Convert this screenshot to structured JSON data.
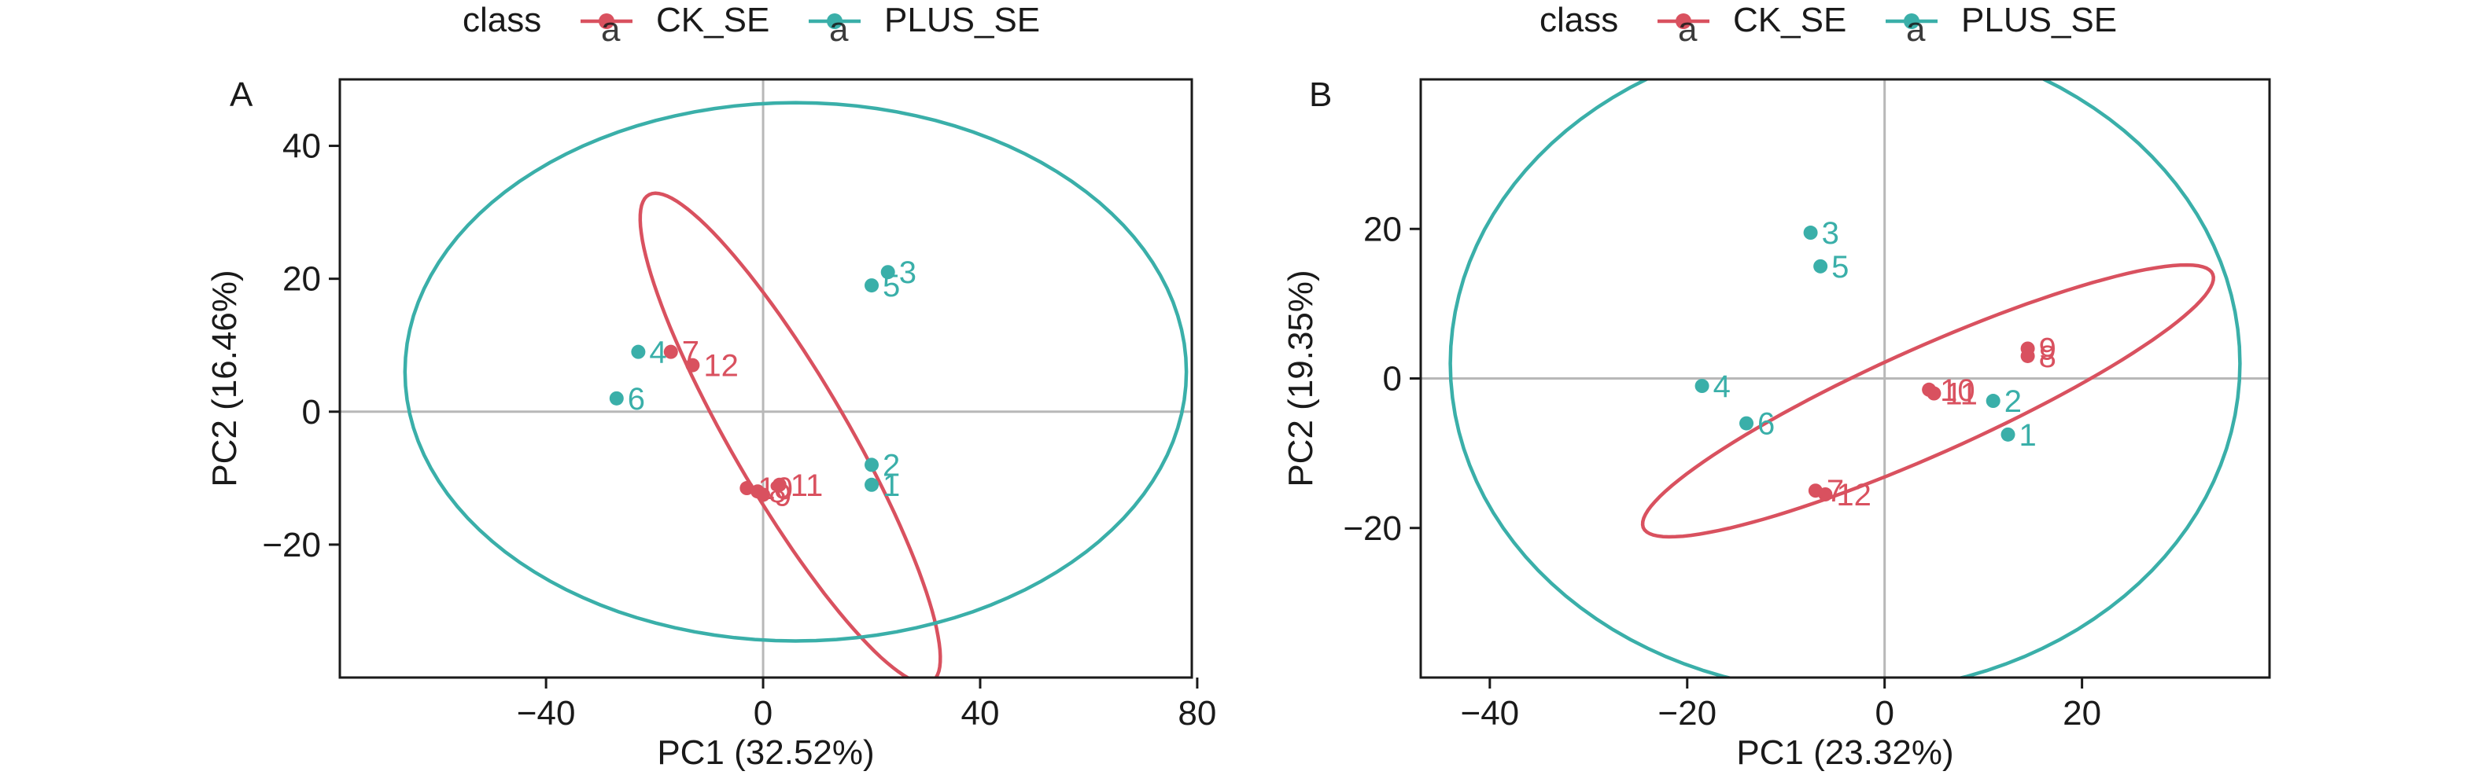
{
  "chart_data": [
    {
      "type": "scatter",
      "panel_label": "A",
      "xlabel": "PC1 (32.52%)",
      "ylabel": "PC2 (16.46%)",
      "xlim": [
        -78,
        79
      ],
      "ylim": [
        -40,
        50
      ],
      "xticks": [
        -40,
        0,
        40,
        80
      ],
      "xtick_labels": [
        "−40",
        "0",
        "40",
        "80"
      ],
      "yticks": [
        -20,
        0,
        20,
        40
      ],
      "ytick_labels": [
        "−20",
        "0",
        "20",
        "40"
      ],
      "grid": false,
      "reference_lines": {
        "x": 0,
        "y": 0
      },
      "legend": {
        "title": "class",
        "position": "top",
        "entries": [
          {
            "name": "CK_SE",
            "color": "#d9515f"
          },
          {
            "name": "PLUS_SE",
            "color": "#3aafa9"
          }
        ]
      },
      "series": [
        {
          "name": "CK_SE",
          "color": "#d9515f",
          "points": [
            {
              "label": "7",
              "x": -17,
              "y": 9
            },
            {
              "label": "12",
              "x": -13,
              "y": 7
            },
            {
              "label": "10",
              "x": -3,
              "y": -11.5
            },
            {
              "label": "8",
              "x": -1,
              "y": -12
            },
            {
              "label": "9",
              "x": 0,
              "y": -12.5
            },
            {
              "label": "11",
              "x": 3,
              "y": -11
            }
          ],
          "ellipse": {
            "cx": 5,
            "cy": -4,
            "rx": 45,
            "ry": 10,
            "angle_deg": -54
          }
        },
        {
          "name": "PLUS_SE",
          "color": "#3aafa9",
          "points": [
            {
              "label": "4",
              "x": -23,
              "y": 9
            },
            {
              "label": "6",
              "x": -27,
              "y": 2
            },
            {
              "label": "3",
              "x": 23,
              "y": 21
            },
            {
              "label": "5",
              "x": 20,
              "y": 19
            },
            {
              "label": "2",
              "x": 20,
              "y": -8
            },
            {
              "label": "1",
              "x": 20,
              "y": -11
            }
          ],
          "ellipse": {
            "cx": 6,
            "cy": 6,
            "rx": 72,
            "ry": 40.5,
            "angle_deg": 0
          }
        }
      ]
    },
    {
      "type": "scatter",
      "panel_label": "B",
      "xlabel": "PC1 (23.32%)",
      "ylabel": "PC2 (19.35%)",
      "xlim": [
        -47,
        39
      ],
      "ylim": [
        -40,
        40
      ],
      "xticks": [
        -40,
        -20,
        0,
        20
      ],
      "xtick_labels": [
        "−40",
        "−20",
        "0",
        "20"
      ],
      "yticks": [
        -20,
        0,
        20
      ],
      "ytick_labels": [
        "−20",
        "0",
        "20"
      ],
      "grid": false,
      "reference_lines": {
        "x": 0,
        "y": 0
      },
      "legend": {
        "title": "class",
        "position": "top",
        "entries": [
          {
            "name": "CK_SE",
            "color": "#d9515f"
          },
          {
            "name": "PLUS_SE",
            "color": "#3aafa9"
          }
        ]
      },
      "series": [
        {
          "name": "CK_SE",
          "color": "#d9515f",
          "points": [
            {
              "label": "7",
              "x": -7,
              "y": -15
            },
            {
              "label": "12",
              "x": -6,
              "y": -15.5
            },
            {
              "label": "10",
              "x": 4.5,
              "y": -1.5
            },
            {
              "label": "11",
              "x": 5,
              "y": -2
            },
            {
              "label": "9",
              "x": 14.5,
              "y": 4
            },
            {
              "label": "8",
              "x": 14.5,
              "y": 3
            }
          ],
          "ellipse": {
            "cx": 4.4,
            "cy": -3,
            "rx": 33.5,
            "ry": 6.7,
            "angle_deg": 31
          }
        },
        {
          "name": "PLUS_SE",
          "color": "#3aafa9",
          "points": [
            {
              "label": "3",
              "x": -7.5,
              "y": 19.5
            },
            {
              "label": "5",
              "x": -6.5,
              "y": 15
            },
            {
              "label": "4",
              "x": -18.5,
              "y": -1
            },
            {
              "label": "6",
              "x": -14,
              "y": -6
            },
            {
              "label": "2",
              "x": 11,
              "y": -3
            },
            {
              "label": "1",
              "x": 12.5,
              "y": -7.5
            }
          ],
          "ellipse": {
            "cx": -4,
            "cy": 2,
            "rx": 40,
            "ry": 44,
            "angle_deg": 0
          }
        }
      ]
    }
  ]
}
